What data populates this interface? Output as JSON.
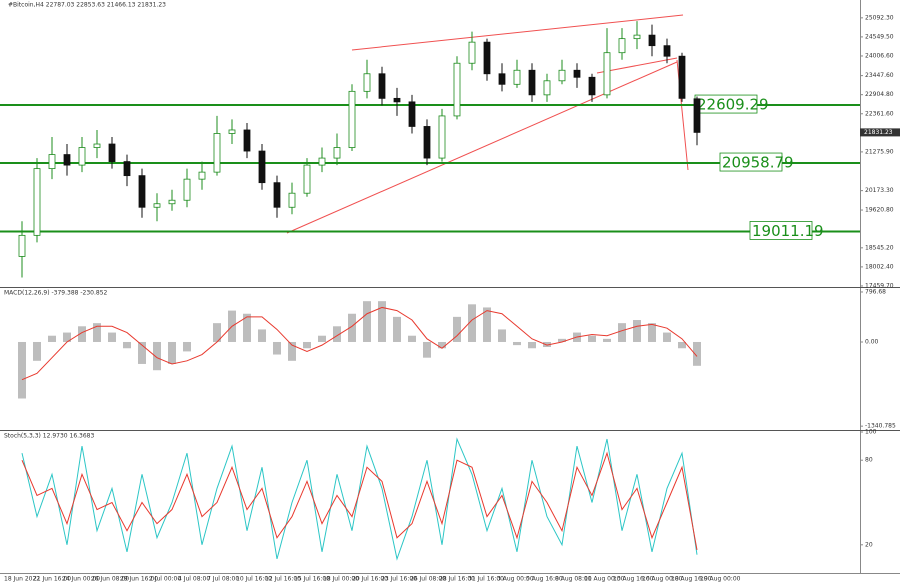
{
  "chart_data": [
    {
      "type": "candlestick",
      "title": "#Bitcoin,H4 22787.03 22853.63 21466.13 21831.23",
      "up_color": "#1e8c1e",
      "down_color": "#111111",
      "open": [
        18300,
        18900,
        20800,
        21200,
        20900,
        21400,
        21500,
        21000,
        20600,
        19700,
        19800,
        19900,
        20500,
        20700,
        21800,
        21900,
        21300,
        20400,
        19700,
        20100,
        20900,
        21100,
        21400,
        23000,
        23500,
        22800,
        22700,
        22000,
        21100,
        22300,
        23800,
        24400,
        23500,
        23200,
        23600,
        22900,
        23300,
        23600,
        23400,
        22900,
        24100,
        24500,
        24600,
        24300,
        24000,
        22787.03
      ],
      "high": [
        19300,
        21100,
        21700,
        21500,
        21700,
        21900,
        21700,
        21200,
        20800,
        20100,
        20200,
        20800,
        21000,
        22300,
        22200,
        22100,
        21500,
        20600,
        20400,
        21100,
        21400,
        21800,
        23200,
        23900,
        23700,
        23100,
        22900,
        22200,
        22500,
        24000,
        24700,
        24500,
        23800,
        23900,
        23800,
        23500,
        23900,
        23800,
        23500,
        24800,
        24800,
        25000,
        24900,
        24500,
        24100,
        22853.63
      ],
      "low": [
        17700,
        18700,
        20500,
        20600,
        20700,
        21100,
        20800,
        20300,
        19400,
        19300,
        19600,
        19700,
        20200,
        20600,
        21500,
        21100,
        20200,
        19400,
        19500,
        20000,
        20700,
        20900,
        21300,
        22800,
        22600,
        22300,
        21800,
        20900,
        21000,
        22200,
        23600,
        23300,
        23000,
        23100,
        22700,
        22700,
        23200,
        23100,
        22700,
        22800,
        23900,
        24200,
        24000,
        23800,
        22700,
        21466.13
      ],
      "close": [
        18900,
        20800,
        21200,
        20900,
        21400,
        21500,
        21000,
        20600,
        19700,
        19800,
        19900,
        20500,
        20700,
        21800,
        21900,
        21300,
        20400,
        19700,
        20100,
        20900,
        21100,
        21400,
        23000,
        23500,
        22800,
        22700,
        22000,
        21100,
        22300,
        23800,
        24400,
        23500,
        23200,
        23600,
        22900,
        23300,
        23600,
        23400,
        22900,
        24100,
        24500,
        24600,
        24300,
        24000,
        22800,
        21831.23
      ],
      "ylim": [
        17430,
        25600
      ],
      "yticks": [
        {
          "value": 25092.3,
          "label": "25092.30"
        },
        {
          "value": 24549.5,
          "label": "24549.50"
        },
        {
          "value": 24006.6,
          "label": "24006.60"
        },
        {
          "value": 23447.6,
          "label": "23447.60"
        },
        {
          "value": 22904.8,
          "label": "22904.80"
        },
        {
          "value": 22361.6,
          "label": "22361.60"
        },
        {
          "value": 21275.9,
          "label": "21275.90"
        },
        {
          "value": 20173.3,
          "label": "20173.30"
        },
        {
          "value": 19620.8,
          "label": "19620.80"
        },
        {
          "value": 18545.2,
          "label": "18545.20"
        },
        {
          "value": 18002.4,
          "label": "18002.40"
        },
        {
          "value": 17459.7,
          "label": "17459.70"
        }
      ],
      "levels": [
        22609.29,
        20958.79,
        19011.19
      ],
      "level_color": "#1a8f1a",
      "time_labels": [
        "18 Jun 2022",
        "21 Jun 16:00",
        "24 Jun 00:00",
        "26 Jun 08:00",
        "29 Jun 16:00",
        "2 Jul 00:00",
        "4 Jul 08:00",
        "7 Jul 08:00",
        "10 Jul 16:00",
        "12 Jul 16:00",
        "15 Jul 16:00",
        "18 Jul 00:00",
        "20 Jul 16:00",
        "23 Jul 16:00",
        "26 Jul 08:00",
        "28 Jul 16:00",
        "31 Jul 16:00",
        "3 Aug 00:00",
        "5 Aug 16:00",
        "8 Aug 08:00",
        "11 Aug 00:00",
        "13 Aug 16:00",
        "16 Aug 00:00",
        "18 Aug 16:00",
        "19 Aug 00:00"
      ]
    },
    {
      "type": "macd",
      "title": "MACD(12,26,9) -379.388 -230.852",
      "series": [
        {
          "name": "MACD",
          "color": "#bdbdbd",
          "values": [
            -900,
            -300,
            100,
            150,
            250,
            300,
            150,
            -100,
            -350,
            -450,
            -350,
            -150,
            0,
            300,
            500,
            450,
            200,
            -200,
            -300,
            -100,
            100,
            250,
            450,
            650,
            650,
            400,
            100,
            -250,
            -100,
            400,
            600,
            550,
            200,
            -50,
            -100,
            -80,
            50,
            150,
            100,
            50,
            300,
            350,
            300,
            150,
            -100,
            -379.388
          ]
        },
        {
          "name": "Signal",
          "color": "#e8392e",
          "values": [
            -600,
            -500,
            -250,
            0,
            150,
            250,
            250,
            150,
            -50,
            -250,
            -350,
            -300,
            -200,
            0,
            250,
            400,
            400,
            200,
            -50,
            -150,
            -50,
            100,
            250,
            450,
            550,
            500,
            350,
            50,
            -100,
            100,
            350,
            500,
            450,
            250,
            50,
            -50,
            0,
            80,
            120,
            100,
            180,
            250,
            280,
            220,
            50,
            -230.852
          ]
        }
      ],
      "ylim": [
        -1402,
        844
      ],
      "yticks": [
        796.68,
        {
          "value": 0,
          "label": "0.00"
        },
        -1340.785
      ]
    },
    {
      "type": "line",
      "title": "Stoch(5,3,3) 12.9730 16.3683",
      "series": [
        {
          "name": "Main",
          "color": "#2cc6c6",
          "values": [
            85,
            40,
            70,
            20,
            90,
            30,
            60,
            15,
            70,
            25,
            50,
            85,
            20,
            60,
            90,
            30,
            75,
            10,
            50,
            80,
            15,
            70,
            30,
            90,
            60,
            10,
            40,
            80,
            20,
            95,
            70,
            30,
            60,
            15,
            80,
            40,
            20,
            90,
            50,
            95,
            30,
            70,
            15,
            60,
            85,
            12.973
          ]
        },
        {
          "name": "Signal",
          "color": "#e8392e",
          "values": [
            80,
            55,
            60,
            35,
            70,
            45,
            50,
            30,
            50,
            35,
            45,
            70,
            40,
            50,
            75,
            45,
            60,
            25,
            40,
            65,
            35,
            55,
            40,
            75,
            65,
            25,
            35,
            65,
            35,
            80,
            75,
            40,
            55,
            25,
            65,
            50,
            30,
            75,
            55,
            85,
            45,
            60,
            25,
            50,
            75,
            16.3683
          ]
        }
      ],
      "ylim": [
        0,
        100
      ],
      "yticks": [
        100,
        80,
        20
      ]
    }
  ]
}
